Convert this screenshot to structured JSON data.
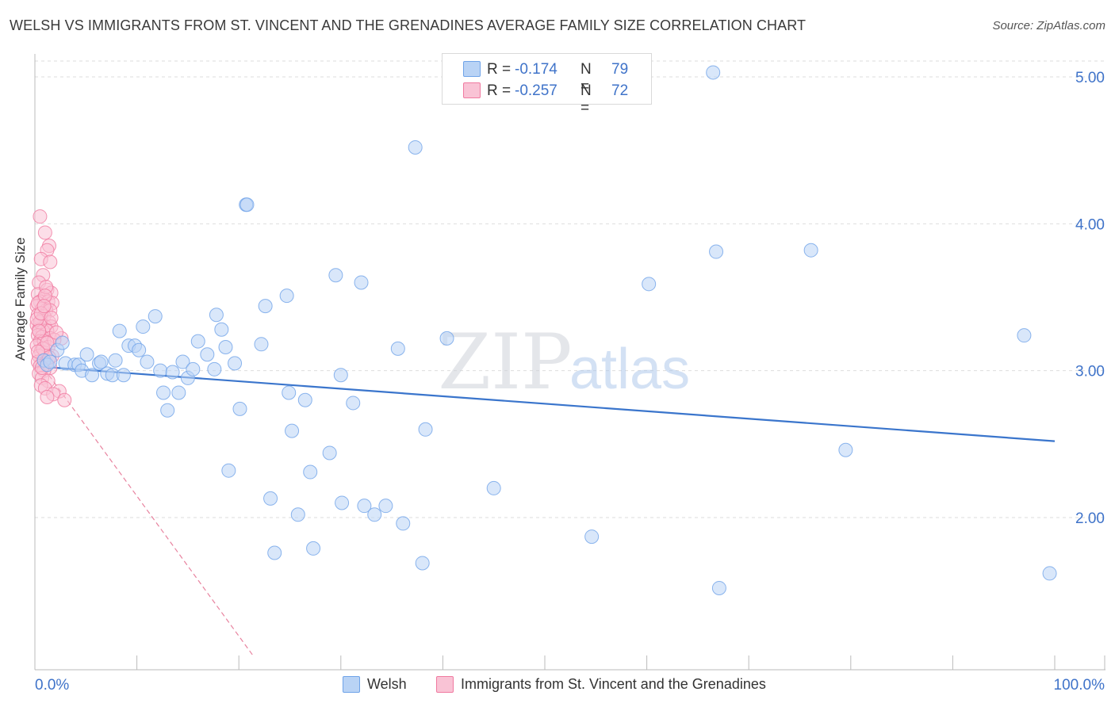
{
  "title": "WELSH VS IMMIGRANTS FROM ST. VINCENT AND THE GRENADINES AVERAGE FAMILY SIZE CORRELATION CHART",
  "source": "Source: ZipAtlas.com",
  "watermark": {
    "zip": "ZIP",
    "atlas": "atlas"
  },
  "legend": {
    "rows": [
      {
        "r_label": "R =",
        "r_value": "-0.174",
        "n_label": "N =",
        "n_value": "79"
      },
      {
        "r_label": "R =",
        "r_value": "-0.257",
        "n_label": "N =",
        "n_value": "72"
      }
    ]
  },
  "colors": {
    "welsh": "#6fa3e8",
    "welsh_fill": "#b9d3f5",
    "welsh_line": "#3a75cc",
    "svg": "#f07aa0",
    "svg_fill": "#f9c3d5",
    "svg_line": "#e8839f",
    "axis_text": "#3f73c9",
    "grid": "#dddddd"
  },
  "chart_data": {
    "type": "scatter",
    "title": "WELSH VS IMMIGRANTS FROM ST. VINCENT AND THE GRENADINES AVERAGE FAMILY SIZE CORRELATION CHART",
    "xlabel": "",
    "ylabel": "Average Family Size",
    "x_tick_labels": [
      "0.0%",
      "100.0%"
    ],
    "y_ticks": [
      2.0,
      3.0,
      4.0,
      5.0
    ],
    "y_tick_labels": [
      "2.00",
      "3.00",
      "4.00",
      "5.00"
    ],
    "xlim": [
      0,
      100
    ],
    "ylim": [
      1.0,
      5.1
    ],
    "grid": true,
    "legend_position": "top-center",
    "series": [
      {
        "name": "Welsh",
        "r": -0.174,
        "n": 79,
        "trend": {
          "x": [
            0,
            100
          ],
          "y": [
            3.03,
            2.52
          ]
        },
        "points": [
          [
            0.9,
            3.07
          ],
          [
            1.2,
            3.04
          ],
          [
            1.5,
            3.06
          ],
          [
            2.2,
            3.14
          ],
          [
            2.7,
            3.19
          ],
          [
            3.0,
            3.05
          ],
          [
            3.9,
            3.04
          ],
          [
            4.3,
            3.04
          ],
          [
            4.6,
            3.0
          ],
          [
            5.1,
            3.11
          ],
          [
            5.6,
            2.97
          ],
          [
            6.3,
            3.05
          ],
          [
            6.5,
            3.06
          ],
          [
            7.1,
            2.98
          ],
          [
            7.6,
            2.97
          ],
          [
            7.9,
            3.07
          ],
          [
            8.3,
            3.27
          ],
          [
            8.7,
            2.97
          ],
          [
            9.2,
            3.17
          ],
          [
            9.8,
            3.17
          ],
          [
            10.2,
            3.14
          ],
          [
            10.6,
            3.3
          ],
          [
            11.0,
            3.06
          ],
          [
            11.8,
            3.37
          ],
          [
            12.3,
            3.0
          ],
          [
            12.6,
            2.85
          ],
          [
            13.0,
            2.73
          ],
          [
            13.5,
            2.99
          ],
          [
            14.1,
            2.85
          ],
          [
            14.5,
            3.06
          ],
          [
            15.0,
            2.95
          ],
          [
            15.5,
            3.01
          ],
          [
            16.0,
            3.2
          ],
          [
            16.9,
            3.11
          ],
          [
            17.6,
            3.01
          ],
          [
            17.8,
            3.38
          ],
          [
            18.3,
            3.28
          ],
          [
            18.7,
            3.16
          ],
          [
            19.0,
            2.32
          ],
          [
            19.6,
            3.05
          ],
          [
            20.1,
            2.74
          ],
          [
            20.7,
            4.13
          ],
          [
            22.2,
            3.18
          ],
          [
            22.6,
            3.44
          ],
          [
            23.1,
            2.13
          ],
          [
            23.5,
            1.76
          ],
          [
            24.7,
            3.51
          ],
          [
            24.9,
            2.85
          ],
          [
            25.2,
            2.59
          ],
          [
            25.8,
            2.02
          ],
          [
            26.5,
            2.8
          ],
          [
            27.0,
            2.31
          ],
          [
            27.3,
            1.79
          ],
          [
            28.9,
            2.44
          ],
          [
            29.5,
            3.65
          ],
          [
            30.0,
            2.97
          ],
          [
            30.1,
            2.1
          ],
          [
            31.2,
            2.78
          ],
          [
            32.0,
            3.6
          ],
          [
            32.3,
            2.08
          ],
          [
            33.3,
            2.02
          ],
          [
            34.4,
            2.08
          ],
          [
            35.6,
            3.15
          ],
          [
            36.1,
            1.96
          ],
          [
            37.3,
            4.52
          ],
          [
            38.0,
            1.69
          ],
          [
            38.3,
            2.6
          ],
          [
            40.4,
            3.22
          ],
          [
            45.0,
            2.2
          ],
          [
            54.6,
            1.87
          ],
          [
            60.2,
            3.59
          ],
          [
            66.5,
            5.03
          ],
          [
            66.8,
            3.81
          ],
          [
            67.1,
            1.52
          ],
          [
            76.1,
            3.82
          ],
          [
            79.5,
            2.46
          ],
          [
            97.0,
            3.24
          ],
          [
            99.5,
            1.62
          ],
          [
            20.8,
            4.13
          ]
        ]
      },
      {
        "name": "Immigrants from St. Vincent and the Grenadines",
        "r": -0.257,
        "n": 72,
        "trend": {
          "x": [
            0,
            21.5
          ],
          "y": [
            3.1,
            1.05
          ]
        },
        "points": [
          [
            0.5,
            4.05
          ],
          [
            1.0,
            3.94
          ],
          [
            1.4,
            3.85
          ],
          [
            1.2,
            3.82
          ],
          [
            0.6,
            3.76
          ],
          [
            1.5,
            3.74
          ],
          [
            0.8,
            3.65
          ],
          [
            0.4,
            3.6
          ],
          [
            1.2,
            3.55
          ],
          [
            0.3,
            3.52
          ],
          [
            1.6,
            3.53
          ],
          [
            0.9,
            3.49
          ],
          [
            0.5,
            3.47
          ],
          [
            1.3,
            3.47
          ],
          [
            1.7,
            3.46
          ],
          [
            0.2,
            3.44
          ],
          [
            0.7,
            3.42
          ],
          [
            1.1,
            3.41
          ],
          [
            1.5,
            3.41
          ],
          [
            0.3,
            3.38
          ],
          [
            0.9,
            3.37
          ],
          [
            0.6,
            3.34
          ],
          [
            1.4,
            3.33
          ],
          [
            0.2,
            3.31
          ],
          [
            1.0,
            3.3
          ],
          [
            1.6,
            3.3
          ],
          [
            0.4,
            3.28
          ],
          [
            0.8,
            3.27
          ],
          [
            1.2,
            3.27
          ],
          [
            0.3,
            3.24
          ],
          [
            0.7,
            3.23
          ],
          [
            1.5,
            3.22
          ],
          [
            2.6,
            3.22
          ],
          [
            0.5,
            3.2
          ],
          [
            0.9,
            3.2
          ],
          [
            0.2,
            3.17
          ],
          [
            1.3,
            3.16
          ],
          [
            0.6,
            3.13
          ],
          [
            1.0,
            3.12
          ],
          [
            0.4,
            3.1
          ],
          [
            1.7,
            3.1
          ],
          [
            0.8,
            3.07
          ],
          [
            0.3,
            3.06
          ],
          [
            1.1,
            3.05
          ],
          [
            0.5,
            3.03
          ],
          [
            1.5,
            3.02
          ],
          [
            0.9,
            3.0
          ],
          [
            0.4,
            2.98
          ],
          [
            0.7,
            2.95
          ],
          [
            1.3,
            2.93
          ],
          [
            0.6,
            2.9
          ],
          [
            1.0,
            2.88
          ],
          [
            2.4,
            2.86
          ],
          [
            1.8,
            2.84
          ],
          [
            1.2,
            2.82
          ],
          [
            2.9,
            2.8
          ],
          [
            0.3,
            3.46
          ],
          [
            1.1,
            3.57
          ],
          [
            0.5,
            3.33
          ],
          [
            0.8,
            3.15
          ],
          [
            1.4,
            3.09
          ],
          [
            0.2,
            3.35
          ],
          [
            1.9,
            3.21
          ],
          [
            0.6,
            3.39
          ],
          [
            1.0,
            3.51
          ],
          [
            0.4,
            3.27
          ],
          [
            1.2,
            3.19
          ],
          [
            0.7,
            3.02
          ],
          [
            1.6,
            3.36
          ],
          [
            0.3,
            3.13
          ],
          [
            2.1,
            3.26
          ],
          [
            0.9,
            3.44
          ]
        ]
      }
    ]
  }
}
